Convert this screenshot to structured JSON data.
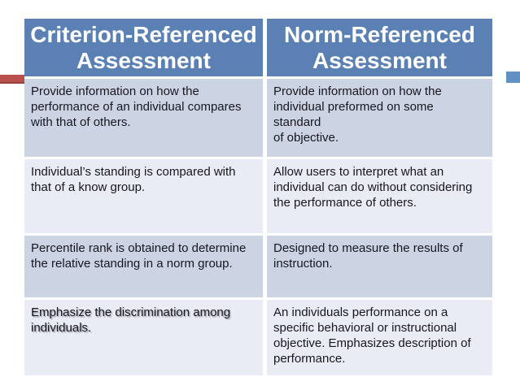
{
  "accents": {
    "left_bar_color": "#b9504e",
    "right_bar_color": "#6190c4"
  },
  "table": {
    "header_bg": "#5b81b4",
    "header_text_color": "#ffffff",
    "band_dark": "#ccd3e3",
    "band_light": "#e9ecf4",
    "body_text_color": "#17171f",
    "columns": [
      {
        "header": "Criterion-Referenced\nAssessment"
      },
      {
        "header": "Norm-Referenced\nAssessment"
      }
    ],
    "rows": [
      {
        "left": "Provide information on how the\nperformance of an individual compares\nwith that of others.",
        "right": "Provide information on how the\nindividual preformed on some standard\nof objective."
      },
      {
        "left": "Individual’s standing is compared with\nthat of a know group.",
        "right": "Allow users to interpret what an\nindividual can do without considering\nthe performance of others."
      },
      {
        "left": "Percentile rank is obtained to determine\nthe relative standing in a norm group.",
        "right": "Designed to measure the results of\ninstruction."
      },
      {
        "left": "Emphasize the discrimination among\nindividuals.",
        "right": "An individuals performance on a\nspecific behavioral or instructional\nobjective. Emphasizes description of\nperformance."
      }
    ]
  }
}
